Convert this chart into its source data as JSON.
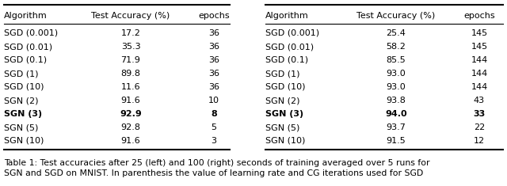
{
  "left_table": {
    "headers": [
      "Algorithm",
      "Test Accuracy (%)",
      "epochs"
    ],
    "rows": [
      [
        "SGD (0.001)",
        "17.2",
        "36",
        false
      ],
      [
        "SGD (0.01)",
        "35.3",
        "36",
        false
      ],
      [
        "SGD (0.1)",
        "71.9",
        "36",
        false
      ],
      [
        "SGD (1)",
        "89.8",
        "36",
        false
      ],
      [
        "SGD (10)",
        "11.6",
        "36",
        false
      ],
      [
        "SGN (2)",
        "91.6",
        "10",
        false
      ],
      [
        "SGN (3)",
        "92.9",
        "8",
        true
      ],
      [
        "SGN (5)",
        "92.8",
        "5",
        false
      ],
      [
        "SGN (10)",
        "91.6",
        "3",
        false
      ]
    ]
  },
  "right_table": {
    "headers": [
      "Algorithm",
      "Test Accuracy (%)",
      "epochs"
    ],
    "rows": [
      [
        "SGD (0.001)",
        "25.4",
        "145",
        false
      ],
      [
        "SGD (0.01)",
        "58.2",
        "145",
        false
      ],
      [
        "SGD (0.1)",
        "85.5",
        "144",
        false
      ],
      [
        "SGD (1)",
        "93.0",
        "144",
        false
      ],
      [
        "SGD (10)",
        "93.0",
        "144",
        false
      ],
      [
        "SGN (2)",
        "93.8",
        "43",
        false
      ],
      [
        "SGN (3)",
        "94.0",
        "33",
        true
      ],
      [
        "SGN (5)",
        "93.7",
        "22",
        false
      ],
      [
        "SGN (10)",
        "91.5",
        "12",
        false
      ]
    ]
  },
  "caption_line1": "Table 1: Test accuracies after 25 (left) and 100 (right) seconds of training averaged over 5 runs for",
  "caption_line2": "SGN and SGD on MNIST. In parenthesis the value of learning rate and CG iterations used for SGD",
  "font_size": 8.0,
  "caption_font_size": 7.8,
  "line_lw_thick": 1.5,
  "line_lw_thin": 0.8
}
